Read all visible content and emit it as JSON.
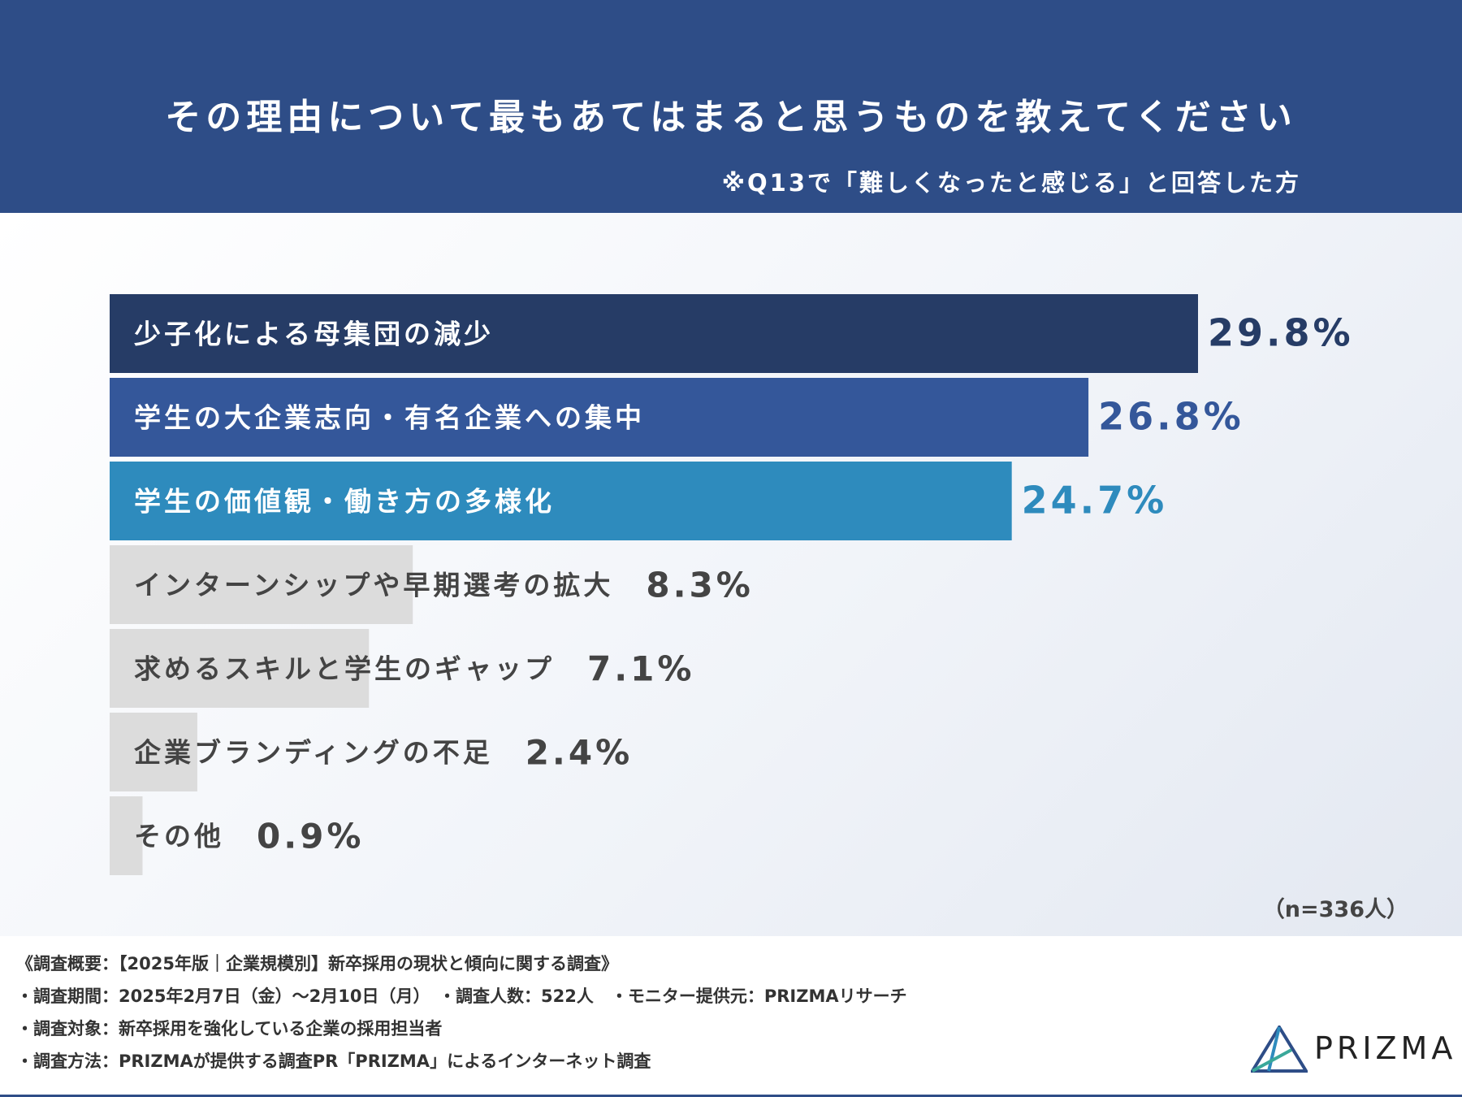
{
  "header": {
    "title": "その理由について最もあてはまると思うものを教えてください",
    "subtitle": "※Q13で「難しくなったと感じる」と回答した方"
  },
  "chart_data": {
    "type": "bar",
    "orientation": "horizontal",
    "unit": "%",
    "categories": [
      "少子化による母集団の減少",
      "学生の大企業志向・有名企業への集中",
      "学生の価値観・働き方の多様化",
      "インターンシップや早期選考の拡大",
      "求めるスキルと学生のギャップ",
      "企業ブランディングの不足",
      "その他"
    ],
    "values": [
      29.8,
      26.8,
      24.7,
      8.3,
      7.1,
      2.4,
      0.9
    ],
    "value_labels": [
      "29.8%",
      "26.8%",
      "24.7%",
      "8.3%",
      "7.1%",
      "2.4%",
      "0.9%"
    ],
    "bar_colors": [
      "#263c66",
      "#34579a",
      "#2e8bbd",
      "#dcdcdc",
      "#dcdcdc",
      "#dcdcdc",
      "#dcdcdc"
    ],
    "label_colors": [
      "#ffffff",
      "#ffffff",
      "#ffffff",
      "#444444",
      "#444444",
      "#444444",
      "#444444"
    ],
    "value_colors": [
      "#263c66",
      "#34579a",
      "#2e8bbd",
      "#444444",
      "#444444",
      "#444444",
      "#444444"
    ],
    "grid": false,
    "legend": "none"
  },
  "sample": "（n=336人）",
  "footer": {
    "line1": "《調査概要：【2025年版｜企業規模別】新卒採用の現状と傾向に関する調査》",
    "line2": "・調査期間：2025年2月7日（金）〜2月10日（月）　・調査人数：522人　・モニター提供元：PRIZMAリサーチ",
    "line3": "・調査対象：新卒採用を強化している企業の採用担当者",
    "line4": "・調査方法：PRIZMAが提供する調査PR「PRIZMA」によるインターネット調査"
  },
  "logo": {
    "text": "PRIZMA",
    "icon": "prism-triangle-icon",
    "colors": [
      "#2e4d87",
      "#2e8bbd",
      "#3aa89a"
    ]
  }
}
